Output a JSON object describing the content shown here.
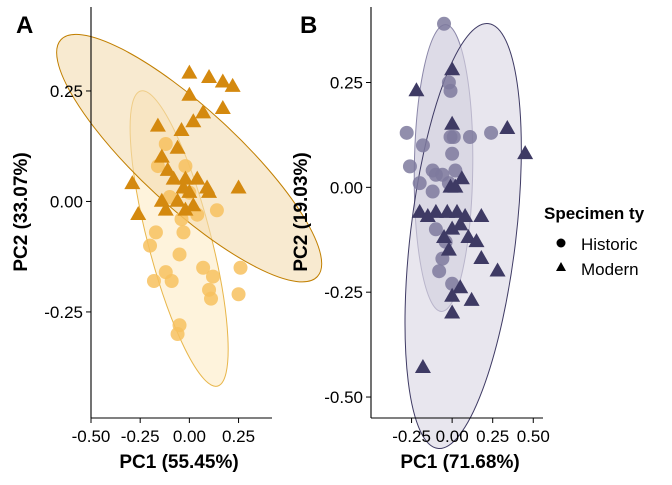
{
  "chart_data": [
    {
      "type": "scatter",
      "panel_label": "A",
      "xlabel": "PC1 (55.45%)",
      "ylabel": "PC2 (33.07%)",
      "xlim": [
        -0.5,
        0.42
      ],
      "ylim": [
        -0.49,
        0.44
      ],
      "xticks": [
        -0.5,
        -0.25,
        0.0,
        0.25
      ],
      "xtick_labels": [
        "-0.50",
        "-0.25",
        "0.00",
        "0.25"
      ],
      "yticks": [
        -0.25,
        0.0,
        0.25
      ],
      "ytick_labels": [
        "-0.25",
        "0.00",
        "0.25"
      ],
      "grid": false,
      "series": [
        {
          "group": "Historic",
          "marker": "circle",
          "color": "#f7c15f",
          "ellipse_fill": "#fdebc4",
          "ellipse_stroke": "#e8b64a",
          "ellipse": {
            "cx": -0.052,
            "cy": -0.084,
            "rx": 0.16,
            "ry": 0.345,
            "angle_deg": -14.6
          },
          "points": [
            [
              -0.16,
              0.08
            ],
            [
              -0.12,
              0.13
            ],
            [
              -0.02,
              0.08
            ],
            [
              0.0,
              0.02
            ],
            [
              -0.1,
              0.01
            ],
            [
              -0.04,
              -0.04
            ],
            [
              0.04,
              -0.03
            ],
            [
              0.14,
              -0.02
            ],
            [
              -0.2,
              -0.1
            ],
            [
              -0.17,
              -0.07
            ],
            [
              -0.03,
              -0.07
            ],
            [
              -0.05,
              -0.12
            ],
            [
              -0.12,
              -0.16
            ],
            [
              -0.18,
              -0.18
            ],
            [
              -0.09,
              -0.18
            ],
            [
              0.07,
              -0.15
            ],
            [
              0.12,
              -0.17
            ],
            [
              0.26,
              -0.15
            ],
            [
              0.1,
              -0.2
            ],
            [
              0.25,
              -0.21
            ],
            [
              0.11,
              -0.22
            ],
            [
              -0.05,
              -0.28
            ],
            [
              -0.06,
              -0.3
            ]
          ]
        },
        {
          "group": "Modern",
          "marker": "triangle",
          "color": "#d4890f",
          "ellipse_fill": "#f4dcb0",
          "ellipse_stroke": "#c17f00",
          "ellipse": {
            "cx": -0.001,
            "cy": 0.098,
            "rx": 0.249,
            "ry": 0.395,
            "angle_deg": -47.3
          },
          "points": [
            [
              0.0,
              0.29
            ],
            [
              0.1,
              0.28
            ],
            [
              0.17,
              0.27
            ],
            [
              0.22,
              0.26
            ],
            [
              0.0,
              0.24
            ],
            [
              0.17,
              0.21
            ],
            [
              0.07,
              0.2
            ],
            [
              -0.16,
              0.17
            ],
            [
              -0.04,
              0.16
            ],
            [
              0.02,
              0.18
            ],
            [
              -0.06,
              0.12
            ],
            [
              -0.14,
              0.1
            ],
            [
              -0.11,
              0.07
            ],
            [
              -0.02,
              0.05
            ],
            [
              0.04,
              0.05
            ],
            [
              -0.08,
              0.05
            ],
            [
              0.09,
              0.03
            ],
            [
              -0.03,
              0.03
            ],
            [
              0.0,
              0.02
            ],
            [
              -0.29,
              0.04
            ],
            [
              -0.06,
              0.0
            ],
            [
              -0.02,
              -0.02
            ],
            [
              0.02,
              -0.01
            ],
            [
              -0.14,
              0.0
            ],
            [
              0.25,
              0.03
            ],
            [
              -0.26,
              -0.03
            ],
            [
              0.1,
              0.02
            ],
            [
              -0.12,
              -0.02
            ]
          ]
        }
      ]
    },
    {
      "type": "scatter",
      "panel_label": "B",
      "xlabel": "PC1 (71.68%)",
      "ylabel": "PC2 (19.03%)",
      "xlim": [
        -0.5,
        0.56
      ],
      "ylim": [
        -0.55,
        0.43
      ],
      "xticks": [
        -0.25,
        0.0,
        0.25,
        0.5
      ],
      "xtick_labels": [
        "-0.25",
        "0.00",
        "0.25",
        "0.50"
      ],
      "yticks": [
        -0.5,
        -0.25,
        0.0,
        0.25
      ],
      "ytick_labels": [
        "-0.50",
        "-0.25",
        "0.00",
        "0.25"
      ],
      "grid": false,
      "series": [
        {
          "group": "Historic",
          "marker": "circle",
          "color": "#7e7a9e",
          "ellipse_fill": "#c7c3d7",
          "ellipse_stroke": "#8a86a8",
          "ellipse": {
            "cx": -0.053,
            "cy": 0.046,
            "rx": 0.18,
            "ry": 0.342,
            "angle_deg": 0.8
          },
          "points": [
            [
              -0.05,
              0.39
            ],
            [
              -0.02,
              0.25
            ],
            [
              -0.01,
              0.23
            ],
            [
              -0.01,
              0.12
            ],
            [
              0.01,
              0.12
            ],
            [
              0.11,
              0.12
            ],
            [
              0.24,
              0.13
            ],
            [
              -0.28,
              0.13
            ],
            [
              -0.18,
              0.1
            ],
            [
              0.0,
              0.08
            ],
            [
              -0.26,
              0.05
            ],
            [
              -0.12,
              0.04
            ],
            [
              -0.1,
              0.03
            ],
            [
              -0.06,
              0.03
            ],
            [
              0.02,
              0.04
            ],
            [
              -0.02,
              0.01
            ],
            [
              -0.12,
              -0.01
            ],
            [
              -0.2,
              0.01
            ],
            [
              -0.1,
              -0.1
            ],
            [
              -0.04,
              -0.13
            ],
            [
              -0.06,
              -0.17
            ],
            [
              -0.08,
              -0.2
            ],
            [
              0.0,
              -0.23
            ]
          ]
        },
        {
          "group": "Modern",
          "marker": "triangle",
          "color": "#3e3a64",
          "ellipse_fill": "#d8d5e2",
          "ellipse_stroke": "#3e3a64",
          "ellipse": {
            "cx": 0.068,
            "cy": -0.116,
            "rx": 0.325,
            "ry": 0.51,
            "angle_deg": 6.8
          },
          "points": [
            [
              0.0,
              0.28
            ],
            [
              -0.22,
              0.23
            ],
            [
              0.0,
              0.15
            ],
            [
              0.34,
              0.14
            ],
            [
              0.45,
              0.08
            ],
            [
              0.06,
              0.02
            ],
            [
              0.02,
              0.0
            ],
            [
              -0.01,
              0.0
            ],
            [
              -0.2,
              -0.06
            ],
            [
              -0.15,
              -0.07
            ],
            [
              -0.1,
              -0.06
            ],
            [
              -0.03,
              -0.06
            ],
            [
              0.03,
              -0.06
            ],
            [
              0.08,
              -0.07
            ],
            [
              0.18,
              -0.07
            ],
            [
              0.05,
              -0.09
            ],
            [
              0.0,
              -0.1
            ],
            [
              -0.05,
              -0.12
            ],
            [
              0.1,
              -0.12
            ],
            [
              0.15,
              -0.13
            ],
            [
              -0.02,
              -0.15
            ],
            [
              0.18,
              -0.17
            ],
            [
              0.28,
              -0.2
            ],
            [
              0.05,
              -0.24
            ],
            [
              0.0,
              -0.3
            ],
            [
              0.0,
              -0.26
            ],
            [
              0.12,
              -0.27
            ],
            [
              -0.18,
              -0.43
            ]
          ]
        }
      ]
    }
  ],
  "legend": {
    "title": "Specimen ty",
    "placement": "right",
    "items": [
      {
        "label": "Historic",
        "marker": "circle"
      },
      {
        "label": "Modern",
        "marker": "triangle"
      }
    ]
  }
}
